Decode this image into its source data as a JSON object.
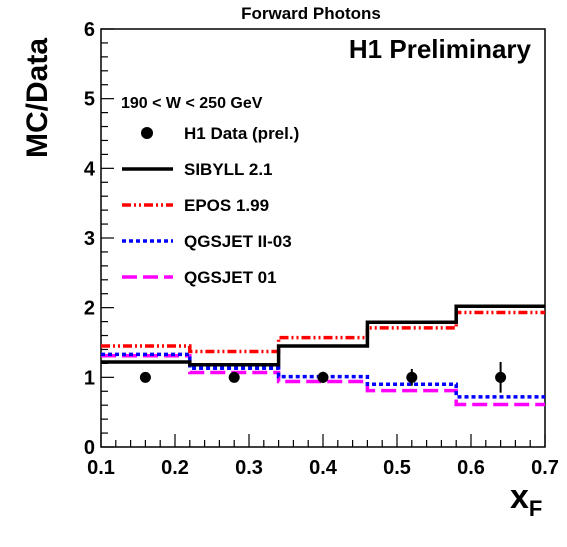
{
  "chart_data": {
    "type": "line",
    "title": "Forward Photons",
    "annotation": "H1 Preliminary",
    "kinematic_label": "190 < W < 250 GeV",
    "xlabel_main": "x",
    "xlabel_sub": "F",
    "ylabel": "MC/Data",
    "xlim": [
      0.1,
      0.7
    ],
    "ylim": [
      0,
      6
    ],
    "x_ticks": [
      "0.1",
      "0.2",
      "0.3",
      "0.4",
      "0.5",
      "0.6",
      "0.7"
    ],
    "y_ticks": [
      "0",
      "1",
      "2",
      "3",
      "4",
      "5",
      "6"
    ],
    "bin_edges": [
      0.1,
      0.22,
      0.34,
      0.46,
      0.58,
      0.7
    ],
    "data": {
      "name": "H1 Data (prel.)",
      "x": [
        0.16,
        0.28,
        0.4,
        0.52,
        0.64
      ],
      "y": [
        1.0,
        1.0,
        1.0,
        1.0,
        1.0
      ],
      "yerr": [
        0.02,
        0.04,
        0.08,
        0.12,
        0.22
      ]
    },
    "series": [
      {
        "name": "SIBYLL 2.1",
        "values": [
          1.22,
          1.18,
          1.45,
          1.79,
          2.02
        ],
        "color": "#000000",
        "dash": "solid"
      },
      {
        "name": "EPOS 1.99",
        "values": [
          1.45,
          1.37,
          1.57,
          1.71,
          1.93
        ],
        "color": "#ff0000",
        "dash": "dashdotdot"
      },
      {
        "name": "QGSJET II-03",
        "values": [
          1.33,
          1.13,
          1.01,
          0.9,
          0.72
        ],
        "color": "#0000ff",
        "dash": "dotted"
      },
      {
        "name": "QGSJET 01",
        "values": [
          1.31,
          1.07,
          0.94,
          0.81,
          0.61
        ],
        "color": "#ff00ff",
        "dash": "dashed"
      }
    ],
    "legend_position": "upper-left",
    "grid": false
  }
}
